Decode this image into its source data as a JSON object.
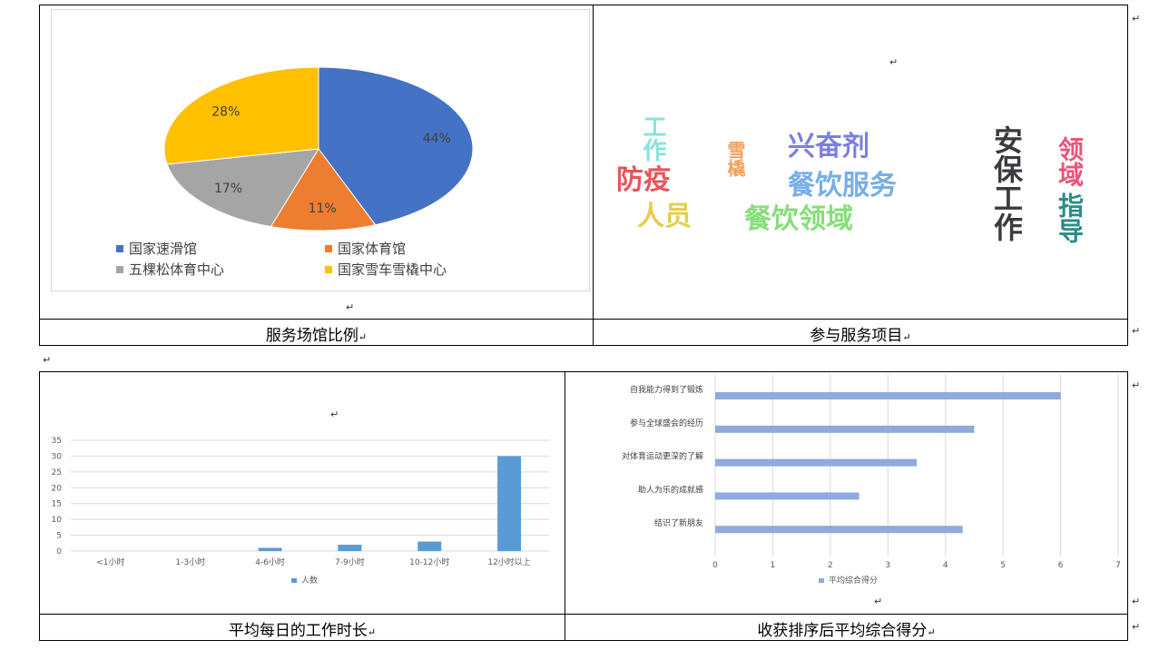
{
  "paragraph_mark": "↵",
  "table1": {
    "captions": [
      "服务场馆比例",
      "参与服务项目"
    ]
  },
  "table2": {
    "captions": [
      "平均每日的工作时长",
      "收获排序后平均综合得分"
    ]
  },
  "wordcloud": {
    "words": [
      {
        "text": "工作",
        "color": "#86e3d9"
      },
      {
        "text": "雪橇",
        "color": "#f5a05a"
      },
      {
        "text": "兴奋剂",
        "color": "#7b7fe0"
      },
      {
        "text": "防疫",
        "color": "#e9545a"
      },
      {
        "text": "餐饮服务",
        "color": "#78aee8"
      },
      {
        "text": "人员",
        "color": "#e2cf4f"
      },
      {
        "text": "餐饮领域",
        "color": "#86df7a"
      },
      {
        "text": "安保工作",
        "color": "#3b3b3f"
      },
      {
        "text": "领域",
        "color": "#e9557a"
      },
      {
        "text": "指导",
        "color": "#2a8c86"
      }
    ]
  },
  "chart_data": [
    {
      "type": "pie",
      "categories": [
        "国家速滑馆",
        "国家体育馆",
        "五棵松体育中心",
        "国家雪车雪橇中心"
      ],
      "values": [
        44,
        11,
        17,
        28
      ],
      "labels": [
        "44%",
        "11%",
        "17%",
        "28%"
      ],
      "colors": [
        "#4472c4",
        "#ed7d31",
        "#a5a5a5",
        "#ffc000"
      ],
      "legend": "bottom"
    },
    {
      "type": "bar",
      "categories": [
        "<1小时",
        "1-3小时",
        "4-6小时",
        "7-9小时",
        "10-12小时",
        "12小时以上"
      ],
      "series": [
        {
          "name": "人数",
          "values": [
            0,
            0,
            1,
            2,
            3,
            30
          ]
        }
      ],
      "yticks": [
        "0",
        "5",
        "10",
        "15",
        "20",
        "25",
        "30",
        "35"
      ],
      "ylim": [
        0,
        35
      ],
      "grid": true,
      "color": "#5b9bd5",
      "legend": "bottom"
    },
    {
      "type": "bar",
      "orientation": "horizontal",
      "categories": [
        "自我能力得到了锻炼",
        "参与全球盛会的经历",
        "对体育运动更深的了解",
        "助人为乐的成就感",
        "结识了新朋友"
      ],
      "series": [
        {
          "name": "平均综合得分",
          "values": [
            6,
            4.5,
            3.5,
            2.5,
            4.3
          ]
        }
      ],
      "xticks": [
        "0",
        "1",
        "2",
        "3",
        "4",
        "5",
        "6",
        "7"
      ],
      "xlim": [
        0,
        7
      ],
      "grid": true,
      "color": "#8faadc",
      "legend": "bottom"
    }
  ]
}
